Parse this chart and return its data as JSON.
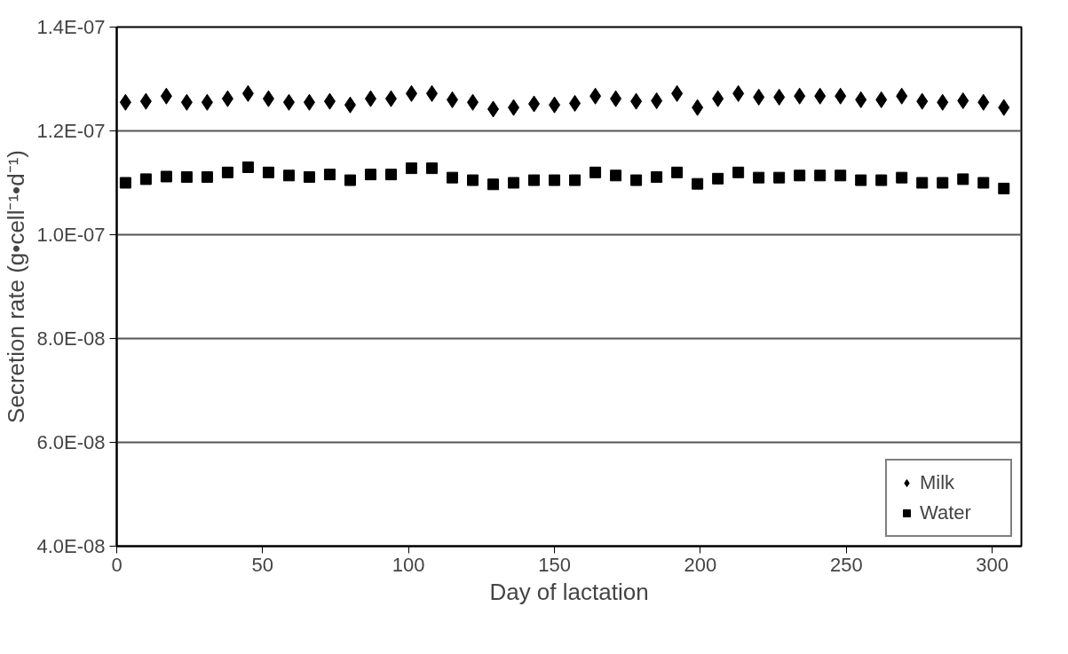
{
  "chart_data": {
    "type": "scatter",
    "xlabel": "Day of lactation",
    "ylabel": "Secretion rate (g•cell⁻¹•d⁻¹)",
    "x": [
      3,
      10,
      17,
      24,
      31,
      38,
      45,
      52,
      59,
      66,
      73,
      80,
      87,
      94,
      101,
      108,
      115,
      122,
      129,
      136,
      143,
      150,
      157,
      164,
      171,
      178,
      185,
      192,
      199,
      206,
      213,
      220,
      227,
      234,
      241,
      248,
      255,
      262,
      269,
      276,
      283,
      290,
      297,
      304
    ],
    "series": [
      {
        "name": "Milk",
        "color": "#000000",
        "marker": "diamond",
        "values": [
          1.255e-07,
          1.257e-07,
          1.267e-07,
          1.255e-07,
          1.255e-07,
          1.262e-07,
          1.272e-07,
          1.262e-07,
          1.255e-07,
          1.255e-07,
          1.257e-07,
          1.25e-07,
          1.262e-07,
          1.262e-07,
          1.272e-07,
          1.272e-07,
          1.26e-07,
          1.255e-07,
          1.242e-07,
          1.245e-07,
          1.252e-07,
          1.25e-07,
          1.253e-07,
          1.267e-07,
          1.262e-07,
          1.257e-07,
          1.258e-07,
          1.272e-07,
          1.245e-07,
          1.262e-07,
          1.272e-07,
          1.265e-07,
          1.265e-07,
          1.267e-07,
          1.267e-07,
          1.267e-07,
          1.26e-07,
          1.26e-07,
          1.267e-07,
          1.257e-07,
          1.255e-07,
          1.258e-07,
          1.255e-07,
          1.245e-07
        ]
      },
      {
        "name": "Water",
        "color": "#000000",
        "marker": "square",
        "values": [
          1.1e-07,
          1.107e-07,
          1.112e-07,
          1.111e-07,
          1.111e-07,
          1.12e-07,
          1.13e-07,
          1.12e-07,
          1.114e-07,
          1.111e-07,
          1.116e-07,
          1.105e-07,
          1.116e-07,
          1.116e-07,
          1.128e-07,
          1.128e-07,
          1.11e-07,
          1.105e-07,
          1.097e-07,
          1.1e-07,
          1.105e-07,
          1.105e-07,
          1.105e-07,
          1.12e-07,
          1.114e-07,
          1.105e-07,
          1.111e-07,
          1.12e-07,
          1.098e-07,
          1.108e-07,
          1.12e-07,
          1.11e-07,
          1.11e-07,
          1.114e-07,
          1.114e-07,
          1.114e-07,
          1.105e-07,
          1.105e-07,
          1.11e-07,
          1.1e-07,
          1.1e-07,
          1.107e-07,
          1.1e-07,
          1.089e-07
        ]
      }
    ],
    "xlim": [
      0,
      310
    ],
    "xticks": [
      0,
      50,
      100,
      150,
      200,
      250,
      300
    ],
    "ylim": [
      4e-08,
      1.4e-07
    ],
    "yticks": [
      {
        "value": 4e-08,
        "label": "4.0E-08"
      },
      {
        "value": 6e-08,
        "label": "6.0E-08"
      },
      {
        "value": 8e-08,
        "label": "8.0E-08"
      },
      {
        "value": 1e-07,
        "label": "1.0E-07"
      },
      {
        "value": 1.2e-07,
        "label": "1.2E-07"
      },
      {
        "value": 1.4e-07,
        "label": "1.4E-07"
      }
    ],
    "grid": "y",
    "legend": "bottom right"
  }
}
